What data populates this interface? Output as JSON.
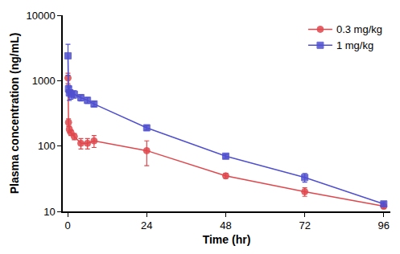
{
  "chart_data": {
    "type": "line",
    "x_label": "Time (hr)",
    "y_label": "Plasma concentration (ng/mL)",
    "log": "y",
    "legend": "top-right",
    "grid": false,
    "xlim": [
      -1.5,
      98
    ],
    "xticks": [
      0,
      24,
      48,
      72,
      96
    ],
    "ylim": [
      10,
      10000
    ],
    "yticks": [
      10,
      100,
      1000,
      10000
    ],
    "series": [
      {
        "name": "0.3 mg/kg",
        "color": "#e0474c",
        "marker": "circle",
        "x": [
          0.083,
          0.25,
          0.5,
          1,
          2,
          4,
          6,
          8,
          24,
          48,
          72,
          96
        ],
        "values": [
          1100,
          230,
          180,
          160,
          140,
          110,
          110,
          120,
          85,
          35,
          20,
          12
        ],
        "error": [
          200,
          30,
          20,
          15,
          15,
          20,
          20,
          25,
          35,
          3,
          3,
          1
        ]
      },
      {
        "name": "1 mg/kg",
        "color": "#4f4fd0",
        "marker": "square",
        "x": [
          0.083,
          0.25,
          0.5,
          1,
          2,
          4,
          6,
          8,
          24,
          48,
          72,
          96
        ],
        "values": [
          2400,
          750,
          650,
          620,
          620,
          550,
          500,
          440,
          190,
          70,
          33,
          13
        ],
        "error": [
          1200,
          100,
          150,
          100,
          80,
          60,
          50,
          40,
          15,
          5,
          5,
          1
        ]
      }
    ]
  }
}
